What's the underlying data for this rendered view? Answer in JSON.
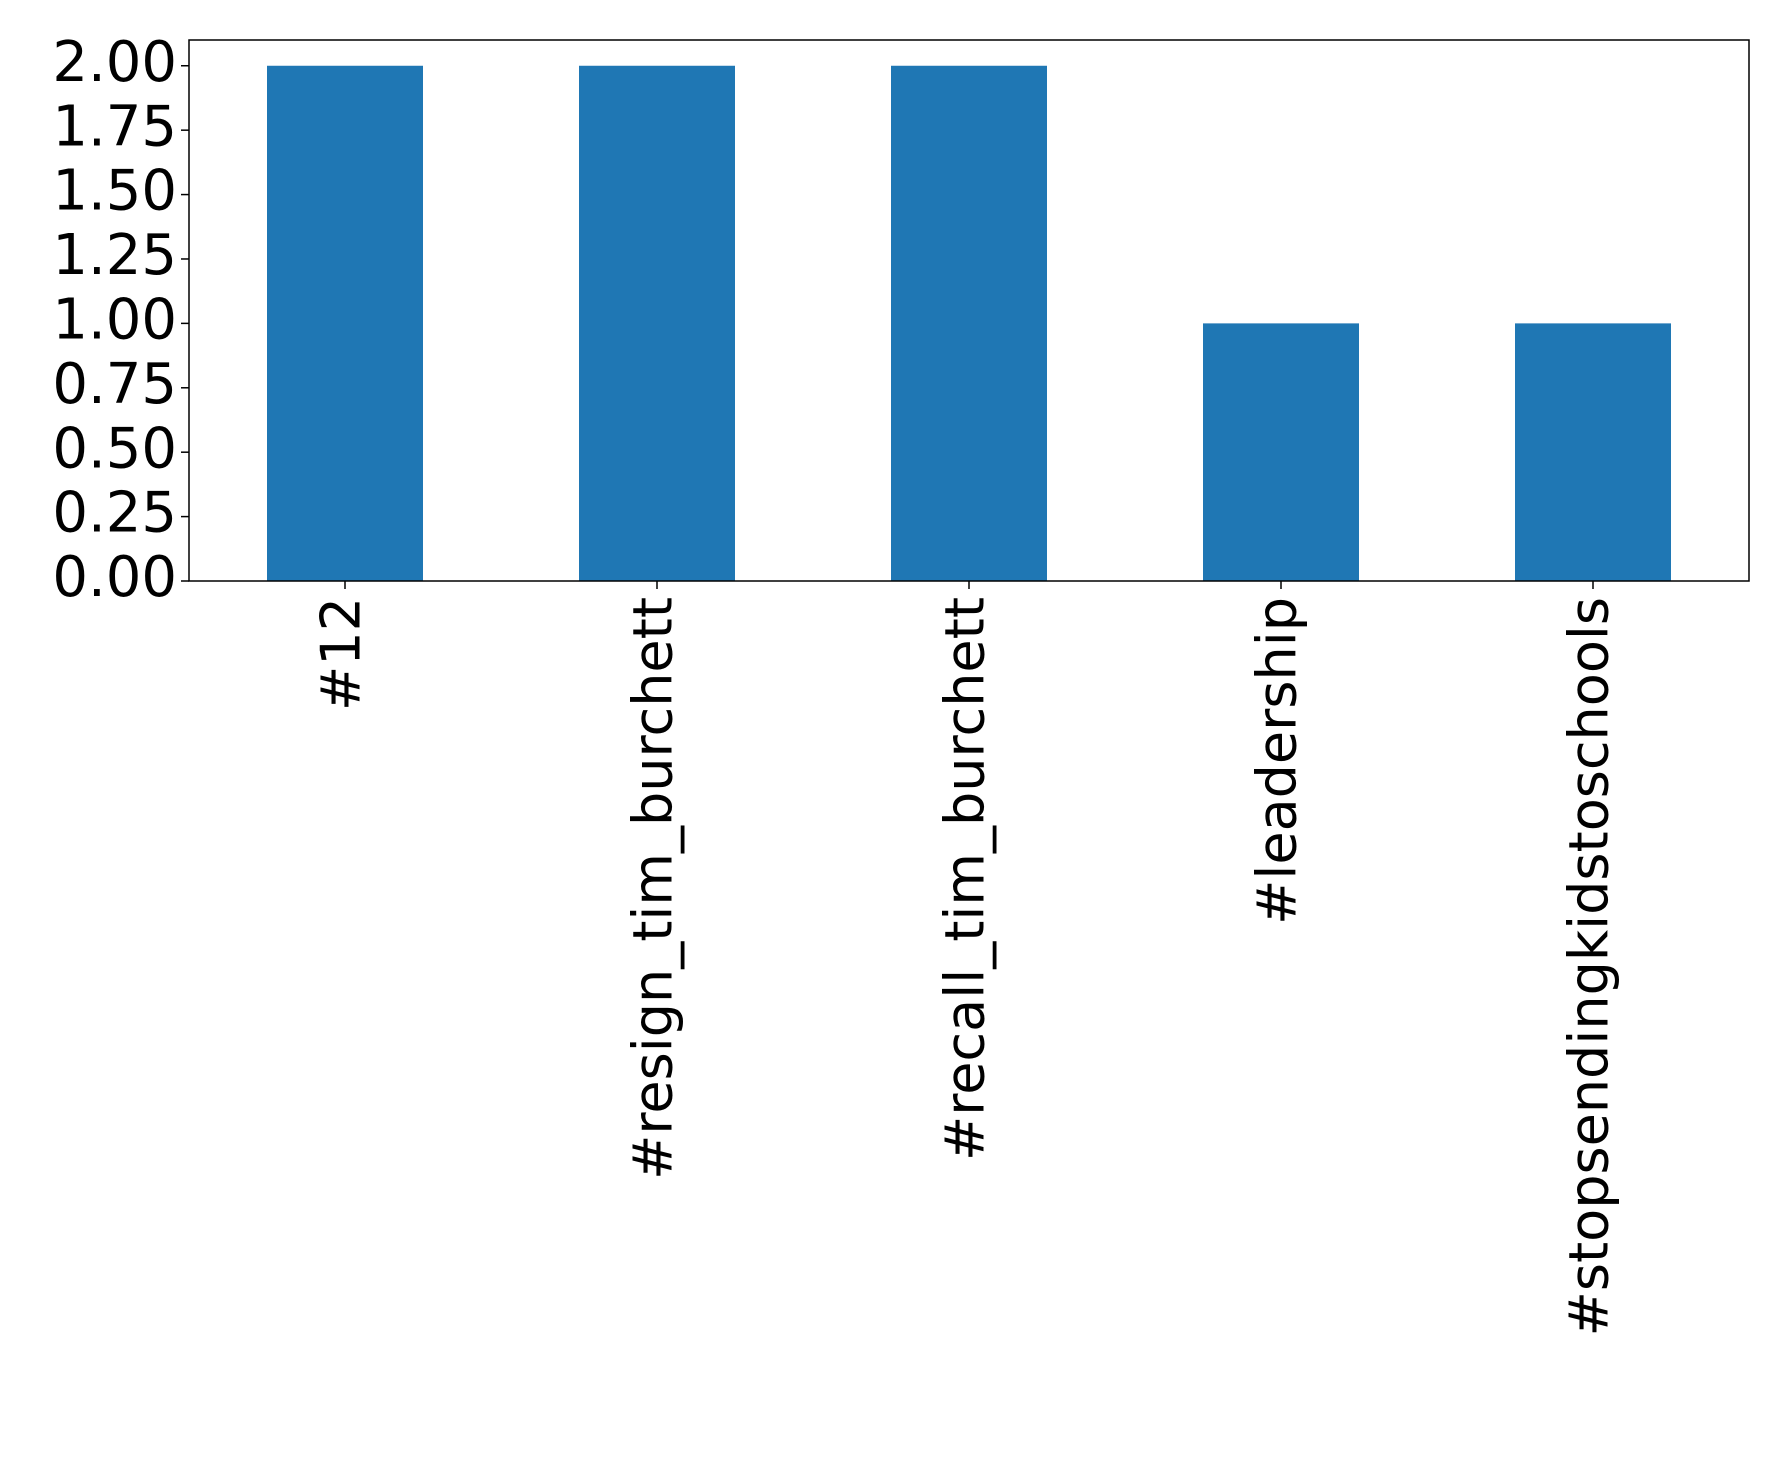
{
  "chart_data": {
    "type": "bar",
    "categories": [
      "#12",
      "#resign_tim_burchett",
      "#recall_tim_burchett",
      "#leadership",
      "#stopsendingkidstoschools"
    ],
    "values": [
      2,
      2,
      2,
      1,
      1
    ],
    "color": "#1f77b4",
    "ylim": [
      0,
      2.1
    ],
    "yticks": [
      {
        "value": 0,
        "label": "0.00"
      },
      {
        "value": 0.25,
        "label": "0.25"
      },
      {
        "value": 0.5,
        "label": "0.50"
      },
      {
        "value": 0.75,
        "label": "0.75"
      },
      {
        "value": 1,
        "label": "1.00"
      },
      {
        "value": 1.25,
        "label": "1.25"
      },
      {
        "value": 1.5,
        "label": "1.50"
      },
      {
        "value": 1.75,
        "label": "1.75"
      },
      {
        "value": 2,
        "label": "2.00"
      }
    ],
    "grid": false
  }
}
